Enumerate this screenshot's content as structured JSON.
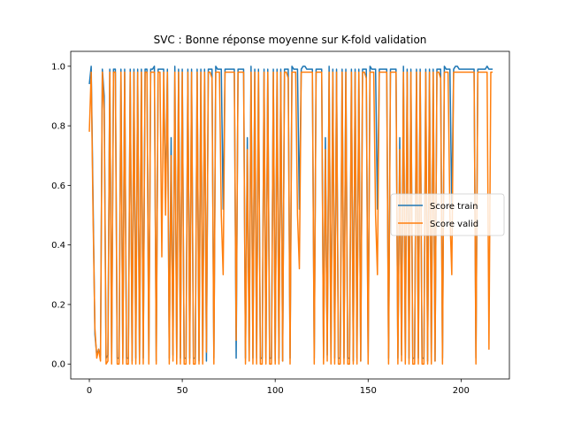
{
  "chart_data": {
    "type": "line",
    "title": "SVC : Bonne réponse moyenne sur K-fold validation",
    "xlabel": "",
    "ylabel": "",
    "xlim": [
      -10,
      226
    ],
    "ylim": [
      -0.05,
      1.05
    ],
    "x_ticks": [
      0,
      50,
      100,
      150,
      200
    ],
    "y_ticks": [
      0.0,
      0.2,
      0.4,
      0.6,
      0.8,
      1.0
    ],
    "x_tick_labels": [
      "0",
      "50",
      "100",
      "150",
      "200"
    ],
    "y_tick_labels": [
      "0.0",
      "0.2",
      "0.4",
      "0.6",
      "0.8",
      "1.0"
    ],
    "grid": false,
    "legend_position": "center-right",
    "n_points": 216,
    "series": [
      {
        "name": "Score train",
        "color": "#1f77b4",
        "values": [
          0.94,
          1.0,
          0.55,
          0.1,
          0.03,
          0.05,
          0.03,
          0.99,
          0.9,
          0.02,
          0.03,
          0.99,
          0.02,
          0.99,
          0.99,
          0.02,
          0.02,
          0.99,
          0.02,
          0.99,
          0.02,
          0.02,
          0.99,
          0.01,
          0.99,
          0.02,
          0.99,
          0.01,
          0.99,
          0.02,
          0.99,
          0.99,
          0.02,
          0.99,
          0.99,
          1.0,
          0.01,
          0.99,
          0.99,
          0.99,
          0.99,
          0.55,
          0.99,
          0.02,
          0.76,
          0.03,
          1.0,
          0.02,
          0.99,
          0.02,
          0.99,
          0.02,
          0.02,
          0.99,
          0.02,
          0.99,
          0.02,
          0.02,
          0.99,
          0.01,
          0.99,
          0.02,
          0.99,
          0.01,
          0.99,
          0.99,
          0.99,
          0.02,
          1.0,
          0.99,
          0.99,
          0.99,
          0.52,
          0.99,
          0.99,
          0.99,
          0.99,
          0.99,
          0.99,
          0.02,
          0.99,
          0.99,
          0.99,
          0.99,
          0.02,
          0.76,
          0.03,
          1.0,
          0.02,
          0.99,
          0.02,
          0.99,
          0.02,
          0.02,
          0.99,
          0.02,
          0.99,
          0.02,
          0.02,
          0.99,
          0.01,
          0.99,
          0.02,
          0.99,
          0.01,
          0.99,
          0.99,
          0.99,
          0.02,
          1.0,
          0.99,
          0.99,
          0.99,
          0.52,
          0.99,
          1.0,
          1.0,
          0.99,
          0.99,
          0.99,
          0.99,
          0.02,
          0.99,
          0.99,
          0.99,
          0.99,
          0.02,
          0.76,
          0.03,
          1.0,
          0.02,
          0.99,
          0.02,
          0.99,
          0.02,
          0.02,
          0.99,
          0.02,
          0.99,
          0.02,
          0.02,
          0.99,
          0.01,
          0.99,
          0.02,
          0.99,
          0.01,
          0.99,
          0.99,
          0.99,
          0.02,
          1.0,
          0.99,
          0.99,
          0.99,
          0.52,
          0.99,
          0.99,
          0.99,
          0.99,
          0.99,
          0.02,
          0.99,
          0.99,
          0.99,
          0.99,
          0.02,
          0.76,
          0.03,
          1.0,
          0.02,
          0.99,
          0.02,
          0.99,
          0.02,
          0.02,
          0.99,
          0.02,
          0.99,
          0.02,
          0.02,
          0.99,
          0.01,
          0.99,
          0.02,
          0.99,
          0.01,
          0.99,
          0.99,
          0.99,
          0.02,
          1.0,
          0.99,
          0.99,
          0.99,
          0.52,
          0.99,
          1.0,
          1.0,
          0.99,
          0.99,
          0.99,
          0.99,
          0.99,
          0.99,
          0.99,
          0.99,
          0.99,
          0.02,
          0.99,
          0.99,
          0.99,
          0.99,
          0.99,
          1.0,
          0.99,
          0.99,
          0.99
        ]
      },
      {
        "name": "Score valid",
        "color": "#ff7f0e",
        "values": [
          0.78,
          0.98,
          0.5,
          0.12,
          0.02,
          0.05,
          0.01,
          0.98,
          0.85,
          0.0,
          0.01,
          0.98,
          0.0,
          0.98,
          0.98,
          0.0,
          0.0,
          0.98,
          0.0,
          0.98,
          0.0,
          0.0,
          0.98,
          0.0,
          0.98,
          0.0,
          0.98,
          0.0,
          0.98,
          0.0,
          0.98,
          0.98,
          0.0,
          0.98,
          0.98,
          0.98,
          0.0,
          0.98,
          0.98,
          0.36,
          0.98,
          0.5,
          0.98,
          0.0,
          0.7,
          0.01,
          0.98,
          0.0,
          0.98,
          0.0,
          0.98,
          0.0,
          0.0,
          0.98,
          0.0,
          0.98,
          0.0,
          0.0,
          0.98,
          0.0,
          0.98,
          0.0,
          0.98,
          0.04,
          0.98,
          0.98,
          0.96,
          0.0,
          0.98,
          0.98,
          0.98,
          0.5,
          0.3,
          0.98,
          0.98,
          0.98,
          0.98,
          0.98,
          0.98,
          0.08,
          0.98,
          0.98,
          0.98,
          0.98,
          0.0,
          0.72,
          0.01,
          0.98,
          0.0,
          0.98,
          0.0,
          0.98,
          0.0,
          0.0,
          0.98,
          0.0,
          0.98,
          0.0,
          0.0,
          0.98,
          0.0,
          0.98,
          0.0,
          0.98,
          0.01,
          0.98,
          0.98,
          0.96,
          0.0,
          0.98,
          0.98,
          0.98,
          0.5,
          0.32,
          0.98,
          0.98,
          0.98,
          0.98,
          0.98,
          0.98,
          0.98,
          0.0,
          0.98,
          0.98,
          0.98,
          0.98,
          0.0,
          0.72,
          0.01,
          0.98,
          0.0,
          0.98,
          0.0,
          0.98,
          0.0,
          0.0,
          0.98,
          0.0,
          0.98,
          0.0,
          0.0,
          0.98,
          0.0,
          0.98,
          0.0,
          0.98,
          0.01,
          0.98,
          0.98,
          0.96,
          0.0,
          0.98,
          0.98,
          0.98,
          0.5,
          0.3,
          0.98,
          0.98,
          0.98,
          0.98,
          0.98,
          0.0,
          0.98,
          0.98,
          0.98,
          0.98,
          0.0,
          0.72,
          0.01,
          0.98,
          0.0,
          0.98,
          0.0,
          0.98,
          0.0,
          0.0,
          0.98,
          0.0,
          0.98,
          0.0,
          0.0,
          0.98,
          0.0,
          0.98,
          0.0,
          0.98,
          0.01,
          0.98,
          0.98,
          0.96,
          0.0,
          0.98,
          0.98,
          0.98,
          0.5,
          0.3,
          0.98,
          0.98,
          0.98,
          0.98,
          0.98,
          0.98,
          0.98,
          0.98,
          0.98,
          0.98,
          0.98,
          0.98,
          0.0,
          0.98,
          0.98,
          0.98,
          0.98,
          0.98,
          0.98,
          0.05,
          0.98,
          0.98
        ]
      }
    ]
  }
}
